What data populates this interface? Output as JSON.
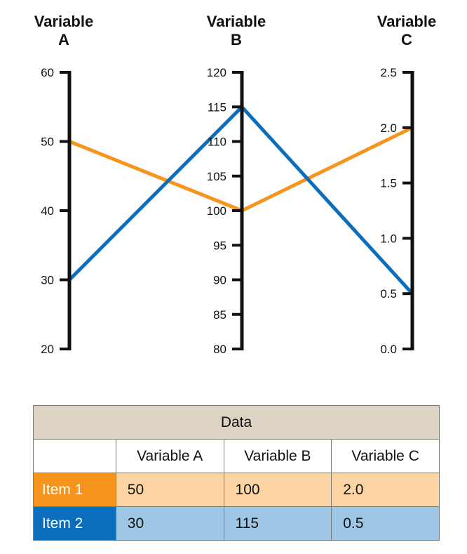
{
  "chart_data": {
    "type": "parallel-coordinates",
    "axes": [
      {
        "title_lines": [
          "Variable",
          "A"
        ],
        "min": 20,
        "max": 60,
        "ticks": [
          "60",
          "50",
          "40",
          "30",
          "20"
        ],
        "tick_values": [
          60,
          50,
          40,
          30,
          20
        ]
      },
      {
        "title_lines": [
          "Variable",
          "B"
        ],
        "min": 80,
        "max": 120,
        "ticks": [
          "120",
          "115",
          "110",
          "105",
          "100",
          "95",
          "90",
          "85",
          "80"
        ],
        "tick_values": [
          120,
          115,
          110,
          105,
          100,
          95,
          90,
          85,
          80
        ]
      },
      {
        "title_lines": [
          "Variable",
          "C"
        ],
        "min": 0,
        "max": 2.5,
        "ticks": [
          "2.5",
          "2.0",
          "1.5",
          "1.0",
          "0.5",
          "0.0"
        ],
        "tick_values": [
          2.5,
          2.0,
          1.5,
          1.0,
          0.5,
          0.0
        ]
      }
    ],
    "series": [
      {
        "name": "Item 1",
        "color": "#f7941d",
        "values": [
          50,
          100,
          2.0
        ]
      },
      {
        "name": "Item 2",
        "color": "#0a6ebd",
        "values": [
          30,
          115,
          0.5
        ]
      }
    ]
  },
  "table": {
    "title": "Data",
    "headers": [
      "Variable A",
      "Variable B",
      "Variable C"
    ],
    "rows": [
      {
        "label": "Item 1",
        "cells": [
          "50",
          "100",
          "2.0"
        ],
        "label_color": "#f7941d",
        "cell_color": "#fdd5a3"
      },
      {
        "label": "Item 2",
        "cells": [
          "30",
          "115",
          "0.5"
        ],
        "label_color": "#0a6ebd",
        "cell_color": "#9ec7e6"
      }
    ]
  }
}
